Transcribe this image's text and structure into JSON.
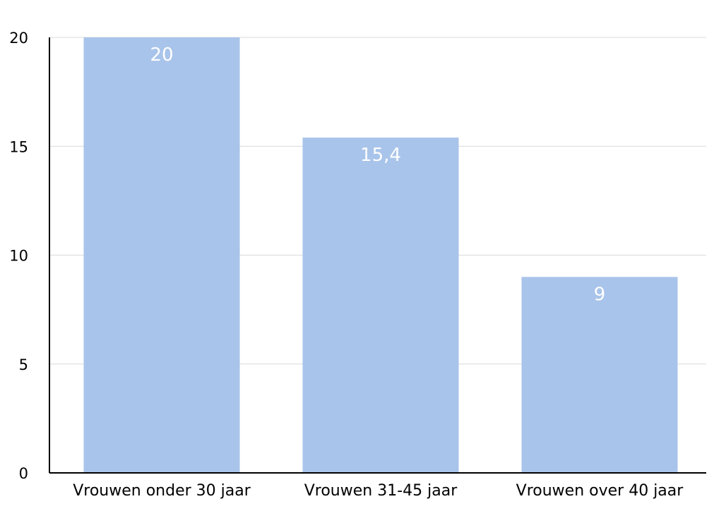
{
  "chart_data": {
    "type": "bar",
    "categories": [
      "Vrouwen onder 30 jaar",
      "Vrouwen 31-45 jaar",
      "Vrouwen over 40 jaar"
    ],
    "values": [
      20,
      15.4,
      9
    ],
    "data_labels": [
      "20",
      "15,4",
      "9"
    ],
    "title": "",
    "xlabel": "",
    "ylabel": "",
    "ylim": [
      0,
      20
    ],
    "yticks": [
      0,
      5,
      10,
      15,
      20
    ],
    "ytick_labels": [
      "0",
      "5",
      "10",
      "15",
      "20"
    ],
    "grid": true,
    "legend": "none",
    "colors": {
      "bar": "#a9c4ea",
      "grid": "#d9d9d9",
      "axis": "#000000",
      "data_label": "#ffffff"
    }
  }
}
